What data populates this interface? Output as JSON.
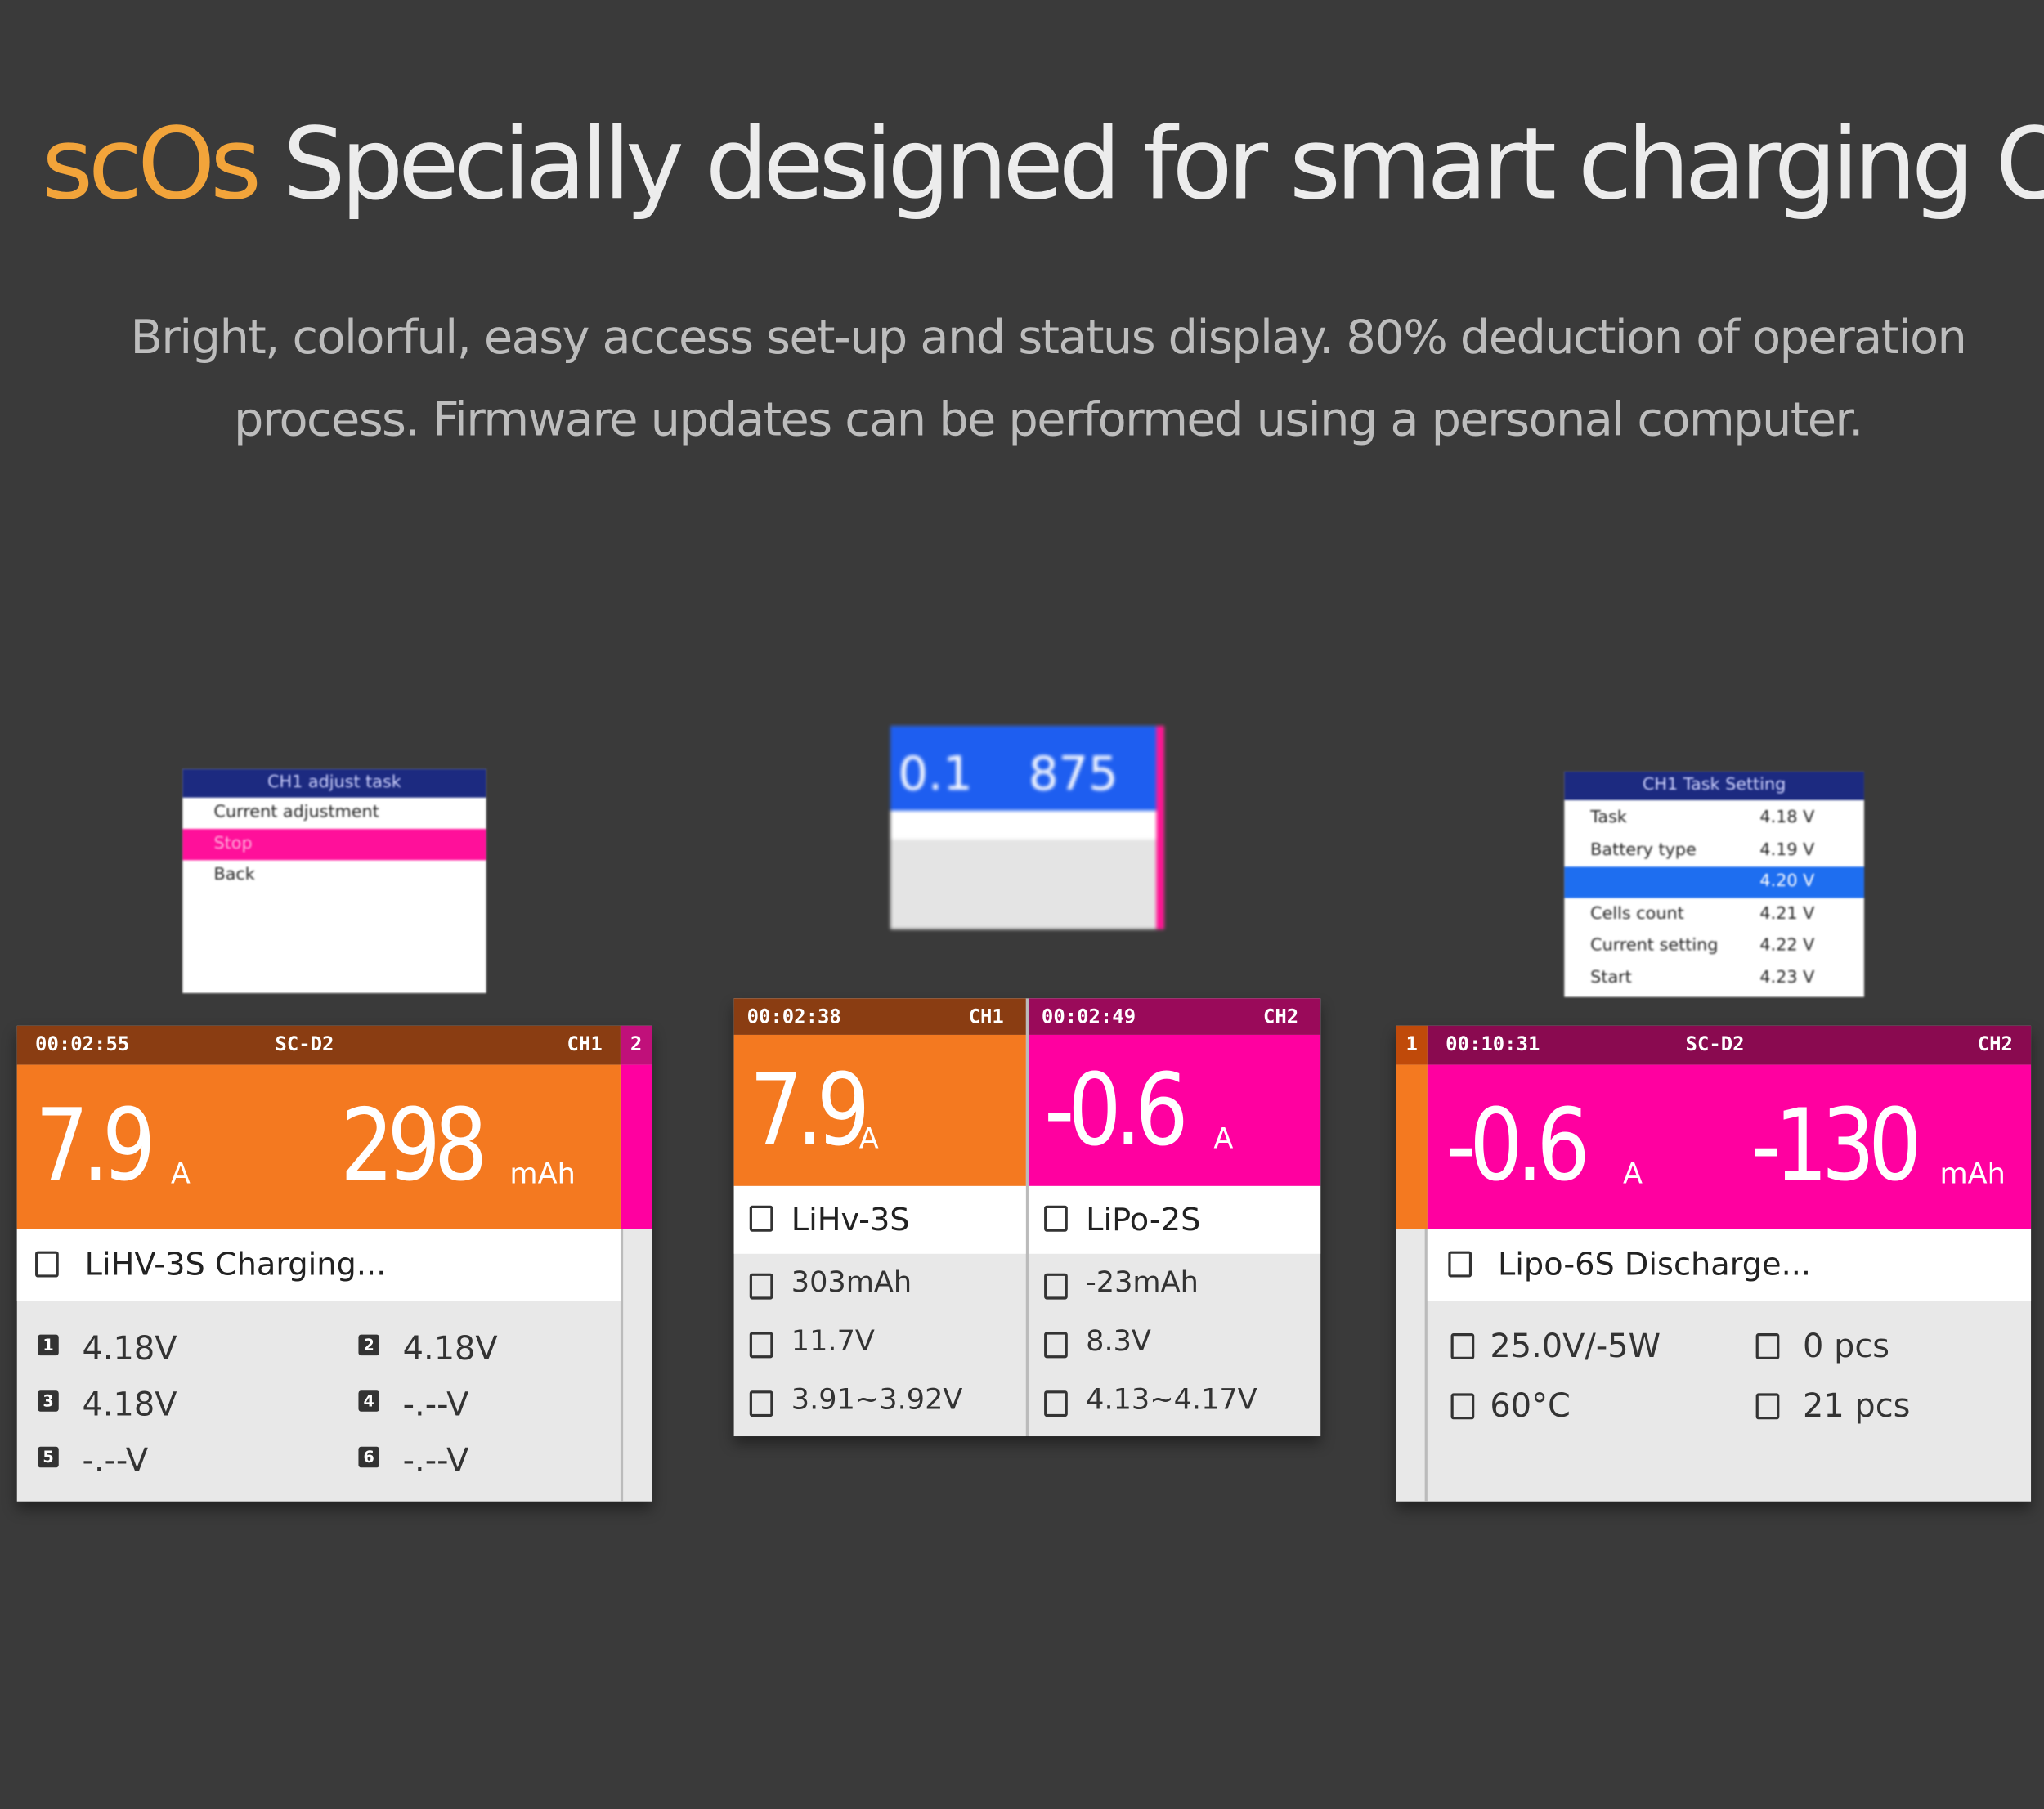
{
  "header": {
    "brand": "scOs",
    "title": "Specially designed for smart charging OS",
    "subtitle_lines": [
      "Bright, colorful, easy access set-up and status display. 80% deduction of operation",
      "process. Firmware updates can be performed using a personal computer."
    ]
  },
  "left_popup": {
    "title": "CH1 adjust task",
    "items": [
      "Current adjustment",
      "Stop",
      "Back"
    ]
  },
  "left_screen": {
    "time": "00:02:55",
    "model": "SC-D2",
    "channel": "CH1",
    "other_channel": "2",
    "current": "7.9",
    "current_unit": "A",
    "capacity": "298",
    "capacity_unit": "mAh",
    "status": "LiHV-3S Charging...",
    "cells": [
      {
        "index": "1",
        "voltage": "4.18V"
      },
      {
        "index": "2",
        "voltage": "4.18V"
      },
      {
        "index": "3",
        "voltage": "4.18V"
      },
      {
        "index": "4",
        "voltage": "-.--V"
      },
      {
        "index": "5",
        "voltage": "-.--V"
      },
      {
        "index": "6",
        "voltage": "-.--V"
      }
    ]
  },
  "center_popup": {
    "current": "0.1",
    "capacity": "875"
  },
  "center_screen": {
    "channels": [
      {
        "time": "00:02:38",
        "channel": "CH1",
        "current": "7.9",
        "current_unit": "A",
        "battery": "LiHv-3S",
        "capacity": "303mAh",
        "voltage": "11.7V",
        "cell_range": "3.91~3.92V"
      },
      {
        "time": "00:02:49",
        "channel": "CH2",
        "current": "-0.6",
        "current_unit": "A",
        "battery": "LiPo-2S",
        "capacity": "-23mAh",
        "voltage": "8.3V",
        "cell_range": "4.13~4.17V"
      }
    ]
  },
  "right_popup": {
    "title": "CH1 Task Setting",
    "rows": [
      {
        "name": "Task",
        "value": "4.18 V"
      },
      {
        "name": "Battery type",
        "value": "4.19 V"
      },
      {
        "value": "4.20 V"
      },
      {
        "name": "Cells count",
        "value": "4.21 V"
      },
      {
        "name": "Current setting",
        "value": "4.22 V"
      },
      {
        "name": "Start",
        "value": "4.23 V"
      }
    ]
  },
  "right_screen": {
    "other_channel": "1",
    "time": "00:10:31",
    "model": "SC-D2",
    "channel": "CH2",
    "current": "-0.6",
    "current_unit": "A",
    "capacity": "-130",
    "capacity_unit": "mAh",
    "status": "Lipo-6S Discharge...",
    "power": "25.0V/-5W",
    "count_a": "0 pcs",
    "temperature": "60°C",
    "count_b": "21 pcs"
  }
}
